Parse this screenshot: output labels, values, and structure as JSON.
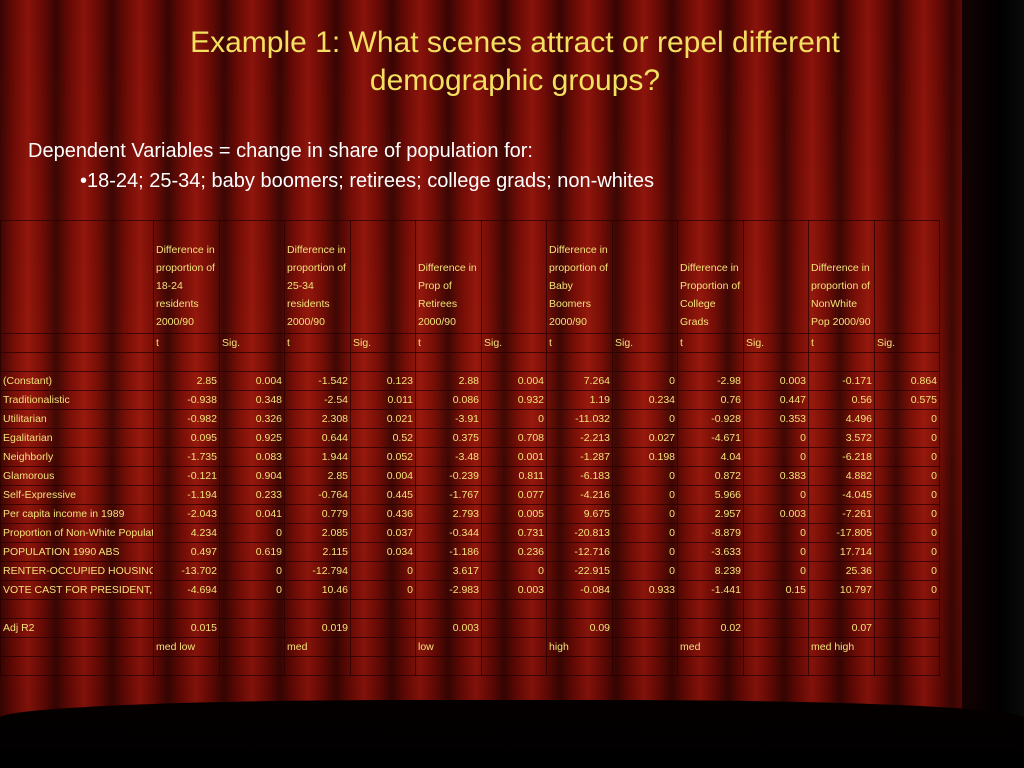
{
  "slide": {
    "title": "Example 1: What scenes attract or repel different demographic groups?",
    "subtitle": "Dependent Variables = change in share of population for:",
    "bullet": "•18-24; 25-34; baby boomers; retirees; college grads; non-whites"
  },
  "table": {
    "group_headers": [
      "Difference in proportion of 18-24 residents 2000/90",
      "Difference in proportion of 25-34 residents 2000/90",
      "Difference in Prop of Retirees 2000/90",
      "Difference in proportion of Baby Boomers 2000/90",
      "Difference in Proportion of College Grads",
      "Difference in proportion of NonWhite Pop 2000/90"
    ],
    "col_t": "t",
    "col_sig": "Sig.",
    "rows": [
      {
        "label": "(Constant)",
        "values": [
          "2.85",
          "0.004",
          "-1.542",
          "0.123",
          "2.88",
          "0.004",
          "7.264",
          "0",
          "-2.98",
          "0.003",
          "-0.171",
          "0.864"
        ]
      },
      {
        "label": "Traditionalistic",
        "values": [
          "-0.938",
          "0.348",
          "-2.54",
          "0.011",
          "0.086",
          "0.932",
          "1.19",
          "0.234",
          "0.76",
          "0.447",
          "0.56",
          "0.575"
        ]
      },
      {
        "label": "Utilitarian",
        "values": [
          "-0.982",
          "0.326",
          "2.308",
          "0.021",
          "-3.91",
          "0",
          "-11.032",
          "0",
          "-0.928",
          "0.353",
          "4.496",
          "0"
        ]
      },
      {
        "label": "Egalitarian",
        "values": [
          "0.095",
          "0.925",
          "0.644",
          "0.52",
          "0.375",
          "0.708",
          "-2.213",
          "0.027",
          "-4.671",
          "0",
          "3.572",
          "0"
        ]
      },
      {
        "label": "Neighborly",
        "values": [
          "-1.735",
          "0.083",
          "1.944",
          "0.052",
          "-3.48",
          "0.001",
          "-1.287",
          "0.198",
          "4.04",
          "0",
          "-6.218",
          "0"
        ]
      },
      {
        "label": "Glamorous",
        "values": [
          "-0.121",
          "0.904",
          "2.85",
          "0.004",
          "-0.239",
          "0.811",
          "-6.183",
          "0",
          "0.872",
          "0.383",
          "4.882",
          "0"
        ]
      },
      {
        "label": "Self-Expressive",
        "values": [
          "-1.194",
          "0.233",
          "-0.764",
          "0.445",
          "-1.767",
          "0.077",
          "-4.216",
          "0",
          "5.966",
          "0",
          "-4.045",
          "0"
        ]
      },
      {
        "label": " Per capita income in 1989",
        "values": [
          "-2.043",
          "0.041",
          "0.779",
          "0.436",
          "2.793",
          "0.005",
          "9.675",
          "0",
          "2.957",
          "0.003",
          "-7.261",
          "0"
        ]
      },
      {
        "label": "Proportion of Non-White Populatio",
        "values": [
          "4.234",
          "0",
          "2.085",
          "0.037",
          "-0.344",
          "0.731",
          "-20.813",
          "0",
          "-8.879",
          "0",
          "-17.805",
          "0"
        ]
      },
      {
        "label": " POPULATION 1990 ABS",
        "values": [
          "0.497",
          "0.619",
          "2.115",
          "0.034",
          "-1.186",
          "0.236",
          "-12.716",
          "0",
          "-3.633",
          "0",
          "17.714",
          "0"
        ]
      },
      {
        "label": " RENTER-OCCUPIED HOUSING UN",
        "values": [
          "-13.702",
          "0",
          "-12.794",
          "0",
          "3.617",
          "0",
          "-22.915",
          "0",
          "8.239",
          "0",
          "25.36",
          "0"
        ]
      },
      {
        "label": " VOTE CAST FOR PRESIDENT, PER",
        "values": [
          "-4.694",
          "0",
          "10.46",
          "0",
          "-2.983",
          "0.003",
          "-0.084",
          "0.933",
          "-1.441",
          "0.15",
          "10.797",
          "0"
        ]
      }
    ],
    "adj_r2_label": "Adj R2",
    "adj_r2": [
      "0.015",
      "0.019",
      "0.003",
      "0.09",
      "0.02",
      "0.07"
    ],
    "ratings": [
      "med low",
      "med",
      "low",
      "high",
      "med",
      "med high"
    ]
  }
}
